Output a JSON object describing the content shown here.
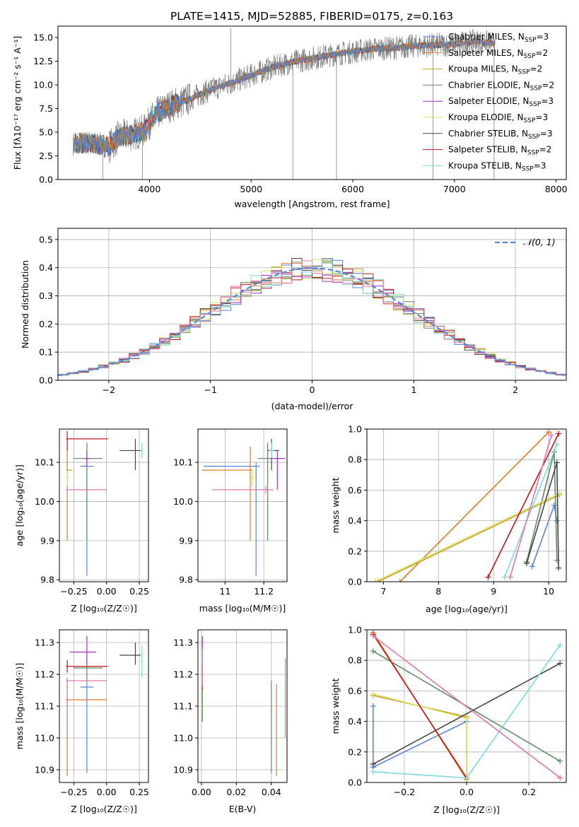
{
  "figure_title": "PLATE=1415, MJD=52885, FIBERID=0175, z=0.163",
  "colors": {
    "chabrier_miles": "#5B84D6",
    "salpeter_miles": "#E07B2A",
    "kroupa_miles": "#C9A227",
    "chabrier_elodie": "#5E8C63",
    "salpeter_elodie": "#9B30C0",
    "kroupa_elodie": "#D8E36A",
    "chabrier_stelib": "#454545",
    "salpeter_stelib": "#C01818",
    "kroupa_stelib": "#7FD8DE",
    "pink": "#E377A8",
    "data_gray": "#808080",
    "normal_curve": "#5B84D6",
    "grid": "#b0b0b0"
  },
  "chart_data": [
    {
      "id": "spectrum",
      "type": "line",
      "xlabel": "wavelength [Angstrom, rest frame]",
      "ylabel": "Flux [f_λ 10^-17 erg cm^-2 s^-1 A^-1]",
      "xlim": [
        3100,
        8100
      ],
      "ylim": [
        0,
        16.2
      ],
      "xticks": [
        4000,
        5000,
        6000,
        7000,
        8000
      ],
      "yticks": [
        0.0,
        2.5,
        5.0,
        7.5,
        10.0,
        12.5,
        15.0
      ],
      "grid": false,
      "legend": "right",
      "legend_entries": [
        {
          "label": "Chabrier MILES, N",
          "sub": "SSP",
          "tail": "=3",
          "color_key": "chabrier_miles"
        },
        {
          "label": "Salpeter MILES, N",
          "sub": "SSP",
          "tail": "=2",
          "color_key": "salpeter_miles"
        },
        {
          "label": "Kroupa MILES, N",
          "sub": "SSP",
          "tail": "=2",
          "color_key": "kroupa_miles"
        },
        {
          "label": "Chabrier ELODIE, N",
          "sub": "SSP",
          "tail": "=2",
          "color_key": "chabrier_elodie"
        },
        {
          "label": "Salpeter ELODIE, N",
          "sub": "SSP",
          "tail": "=3",
          "color_key": "salpeter_elodie"
        },
        {
          "label": "Kroupa ELODIE, N",
          "sub": "SSP",
          "tail": "=3",
          "color_key": "kroupa_elodie"
        },
        {
          "label": "Chabrier STELIB, N",
          "sub": "SSP",
          "tail": "=3",
          "color_key": "chabrier_stelib"
        },
        {
          "label": "Salpeter STELIB, N",
          "sub": "SSP",
          "tail": "=2",
          "color_key": "salpeter_stelib"
        },
        {
          "label": "Kroupa STELIB, N",
          "sub": "SSP",
          "tail": "=3",
          "color_key": "kroupa_stelib"
        }
      ],
      "continuum": {
        "x": [
          3250,
          3400,
          3600,
          3700,
          3850,
          3950,
          4050,
          4200,
          4400,
          4600,
          4800,
          5000,
          5200,
          5400,
          5600,
          5800,
          6000,
          6200,
          6400,
          6600,
          6800,
          7000,
          7200,
          7400
        ],
        "y": [
          3.8,
          3.9,
          3.5,
          4.5,
          4.8,
          5.2,
          6.8,
          7.8,
          8.5,
          9.5,
          10.2,
          11.0,
          11.8,
          12.4,
          12.8,
          13.2,
          13.5,
          13.8,
          13.9,
          14.1,
          14.2,
          14.3,
          14.6,
          14.4
        ]
      },
      "absorption_spikes": [
        {
          "x": 3540,
          "y": 0.0
        },
        {
          "x": 3930,
          "y": 0.0
        },
        {
          "x": 4800,
          "y": 16.0
        },
        {
          "x": 5410,
          "y": 0.0
        },
        {
          "x": 5840,
          "y": 0.0
        },
        {
          "x": 6790,
          "y": 0.0
        },
        {
          "x": 7390,
          "y": 0.0
        }
      ]
    },
    {
      "id": "residuals",
      "type": "histogram",
      "xlabel": "(data-model)/error",
      "ylabel": "Normed distribution",
      "xlim": [
        -2.5,
        2.5
      ],
      "ylim": [
        0,
        0.54
      ],
      "xticks": [
        -2,
        -1,
        0,
        1,
        2
      ],
      "xtick_labels": [
        "−2",
        "−1",
        "0",
        "1",
        "2"
      ],
      "yticks": [
        0.0,
        0.1,
        0.2,
        0.3,
        0.4,
        0.5
      ],
      "grid": true,
      "legend": "top-right",
      "legend_label": "N(0, 1)",
      "bin_width": 0.1,
      "normal_mean": 0,
      "normal_sigma": 1
    },
    {
      "id": "age_vs_Z",
      "type": "errorbar",
      "xlabel": "Z [log10(Z/Z_sun)]",
      "ylabel": "age [log10(age/yr)]",
      "xlim": [
        -0.36,
        0.32
      ],
      "ylim": [
        9.795,
        10.185
      ],
      "xticks": [
        -0.25,
        0.0,
        0.25
      ],
      "xtick_labels": [
        "−0.25",
        "0.00",
        "0.25"
      ],
      "yticks": [
        9.8,
        9.9,
        10.0,
        10.1
      ],
      "grid": true,
      "points": [
        {
          "color_key": "chabrier_miles",
          "x": -0.15,
          "xerr": [
            0.05,
            0.05
          ],
          "y": 10.09,
          "yerr": [
            0.28,
            0.01
          ]
        },
        {
          "color_key": "salpeter_miles",
          "x": -0.3,
          "xerr": [
            0.01,
            0.01
          ],
          "y": 10.08,
          "yerr": [
            0.18,
            0.06
          ]
        },
        {
          "color_key": "kroupa_miles",
          "x": -0.3,
          "xerr": [
            0.01,
            0.04
          ],
          "y": 10.08,
          "yerr": [
            0.01,
            0.01
          ]
        },
        {
          "color_key": "chabrier_elodie",
          "x": -0.15,
          "xerr": [
            0.1,
            0.12
          ],
          "y": 10.11,
          "yerr": [
            0.21,
            0.04
          ]
        },
        {
          "color_key": "salpeter_elodie",
          "x": -0.15,
          "xerr": [
            0.02,
            0.02
          ],
          "y": 10.11,
          "yerr": [
            0.02,
            0.02
          ]
        },
        {
          "color_key": "kroupa_elodie",
          "x": -0.3,
          "xerr": [
            0.01,
            0.01
          ],
          "y": 10.06,
          "yerr": [
            0.02,
            0.02
          ]
        },
        {
          "color_key": "chabrier_stelib",
          "x": 0.22,
          "xerr": [
            0.12,
            0.04
          ],
          "y": 10.13,
          "yerr": [
            0.05,
            0.03
          ]
        },
        {
          "color_key": "salpeter_stelib",
          "x": -0.3,
          "xerr": [
            0.01,
            0.31
          ],
          "y": 10.16,
          "yerr": [
            0.03,
            0.02
          ]
        },
        {
          "color_key": "kroupa_stelib",
          "x": 0.27,
          "xerr": [
            0.01,
            0.01
          ],
          "y": 10.13,
          "yerr": [
            0.02,
            0.02
          ]
        },
        {
          "color_key": "pink",
          "x": -0.3,
          "xerr": [
            0.01,
            0.3
          ],
          "y": 10.03,
          "yerr": [
            0.01,
            0.01
          ]
        }
      ]
    },
    {
      "id": "age_vs_mass",
      "type": "errorbar",
      "xlabel": "mass [log10(M/M_sun)]",
      "xlim": [
        10.86,
        11.32
      ],
      "ylim": [
        9.795,
        10.185
      ],
      "xticks": [
        11.0,
        11.2
      ],
      "yticks": [
        9.8,
        9.9,
        10.0,
        10.1
      ],
      "grid": true,
      "points": [
        {
          "color_key": "chabrier_miles",
          "x": 11.16,
          "xerr": [
            0.27,
            0.02
          ],
          "y": 10.09,
          "yerr": [
            0.28,
            0.01
          ]
        },
        {
          "color_key": "salpeter_miles",
          "x": 11.13,
          "xerr": [
            0.25,
            0.01
          ],
          "y": 10.08,
          "yerr": [
            0.18,
            0.06
          ]
        },
        {
          "color_key": "chabrier_elodie",
          "x": 11.22,
          "xerr": [
            0.05,
            0.03
          ],
          "y": 10.11,
          "yerr": [
            0.21,
            0.04
          ]
        },
        {
          "color_key": "salpeter_elodie",
          "x": 11.27,
          "xerr": [
            0.04,
            0.04
          ],
          "y": 10.11,
          "yerr": [
            0.08,
            0.02
          ]
        },
        {
          "color_key": "kroupa_elodie",
          "x": 11.14,
          "xerr": [
            0.01,
            0.01
          ],
          "y": 10.06,
          "yerr": [
            0.02,
            0.02
          ]
        },
        {
          "color_key": "chabrier_stelib",
          "x": 11.24,
          "xerr": [
            0.02,
            0.04
          ],
          "y": 10.13,
          "yerr": [
            0.05,
            0.03
          ]
        },
        {
          "color_key": "kroupa_stelib",
          "x": 11.24,
          "xerr": [
            0.01,
            0.01
          ],
          "y": 10.13,
          "yerr": [
            0.02,
            0.02
          ]
        },
        {
          "color_key": "pink",
          "x": 11.21,
          "xerr": [
            0.28,
            0.04
          ],
          "y": 10.03,
          "yerr": [
            0.01,
            0.01
          ]
        }
      ]
    },
    {
      "id": "weight_vs_age",
      "type": "line",
      "xlabel": "age [log10(age/yr)]",
      "ylabel": "mass weight",
      "xlim": [
        6.7,
        10.32
      ],
      "ylim": [
        0,
        1.0
      ],
      "xticks": [
        7,
        8,
        9,
        10
      ],
      "yticks": [
        0.0,
        0.2,
        0.4,
        0.6,
        0.8,
        1.0
      ],
      "grid": true,
      "series": [
        {
          "color_key": "chabrier_miles",
          "x": [
            9.7,
            10.1,
            10.15
          ],
          "y": [
            0.1,
            0.5,
            0.4
          ]
        },
        {
          "color_key": "salpeter_miles",
          "x": [
            7.3,
            10.0
          ],
          "y": [
            0.0,
            0.98
          ]
        },
        {
          "color_key": "kroupa_miles",
          "x": [
            6.9,
            10.2
          ],
          "y": [
            0.0,
            0.57
          ]
        },
        {
          "color_key": "chabrier_elodie",
          "x": [
            9.6,
            10.1,
            10.15
          ],
          "y": [
            0.13,
            0.85,
            0.14
          ]
        },
        {
          "color_key": "kroupa_elodie",
          "x": [
            6.85,
            10.2
          ],
          "y": [
            0.0,
            0.58
          ]
        },
        {
          "color_key": "chabrier_stelib",
          "x": [
            9.6,
            10.15,
            10.18
          ],
          "y": [
            0.12,
            0.78,
            0.09
          ]
        },
        {
          "color_key": "salpeter_stelib",
          "x": [
            8.9,
            10.18
          ],
          "y": [
            0.03,
            0.97
          ]
        },
        {
          "color_key": "kroupa_stelib",
          "x": [
            9.2,
            10.15
          ],
          "y": [
            0.03,
            0.9
          ]
        },
        {
          "color_key": "pink",
          "x": [
            9.3,
            10.05
          ],
          "y": [
            0.03,
            0.96
          ]
        }
      ]
    },
    {
      "id": "mass_vs_Z",
      "type": "errorbar",
      "xlabel": "Z [log10(Z/Z_sun)]",
      "ylabel": "mass [log10(M/M_sun)]",
      "xlim": [
        -0.36,
        0.32
      ],
      "ylim": [
        10.86,
        11.34
      ],
      "xticks": [
        -0.25,
        0.0,
        0.25
      ],
      "xtick_labels": [
        "−0.25",
        "0.00",
        "0.25"
      ],
      "yticks": [
        10.9,
        11.0,
        11.1,
        11.2,
        11.3
      ],
      "grid": true,
      "points": [
        {
          "color_key": "chabrier_miles",
          "x": -0.15,
          "xerr": [
            0.05,
            0.05
          ],
          "y": 11.16,
          "yerr": [
            0.27,
            0.02
          ]
        },
        {
          "color_key": "salpeter_miles",
          "x": -0.3,
          "xerr": [
            0.01,
            0.3
          ],
          "y": 11.12,
          "yerr": [
            0.24,
            0.01
          ]
        },
        {
          "color_key": "chabrier_elodie",
          "x": -0.15,
          "xerr": [
            0.1,
            0.12
          ],
          "y": 11.22,
          "yerr": [
            0.04,
            0.03
          ]
        },
        {
          "color_key": "salpeter_elodie",
          "x": -0.15,
          "xerr": [
            0.13,
            0.07
          ],
          "y": 11.27,
          "yerr": [
            0.04,
            0.05
          ]
        },
        {
          "color_key": "kroupa_elodie",
          "x": -0.3,
          "xerr": [
            0.01,
            0.01
          ],
          "y": 11.16,
          "yerr": [
            0.02,
            0.02
          ]
        },
        {
          "color_key": "chabrier_stelib",
          "x": 0.22,
          "xerr": [
            0.12,
            0.04
          ],
          "y": 11.26,
          "yerr": [
            0.03,
            0.04
          ]
        },
        {
          "color_key": "salpeter_stelib",
          "x": -0.3,
          "xerr": [
            0.01,
            0.31
          ],
          "y": 11.225,
          "yerr": [
            0.02,
            0.02
          ]
        },
        {
          "color_key": "kroupa_stelib",
          "x": 0.27,
          "xerr": [
            0.01,
            0.01
          ],
          "y": 11.24,
          "yerr": [
            0.05,
            0.05
          ]
        },
        {
          "color_key": "pink",
          "x": -0.3,
          "xerr": [
            0.01,
            0.3
          ],
          "y": 11.18,
          "yerr": [
            0.18,
            0.01
          ]
        }
      ]
    },
    {
      "id": "mass_vs_ebv",
      "type": "errorbar",
      "xlabel": "E(B-V)",
      "xlim": [
        -0.002,
        0.049
      ],
      "ylim": [
        10.86,
        11.34
      ],
      "xticks": [
        0.0,
        0.02,
        0.04
      ],
      "xtick_labels": [
        "0.00",
        "0.02",
        "0.04"
      ],
      "yticks": [
        10.9,
        11.0,
        11.1,
        11.2,
        11.3
      ],
      "grid": true,
      "points": [
        {
          "color_key": "chabrier_miles",
          "x": 0.04,
          "xerr": [
            0,
            0
          ],
          "y": 11.16,
          "yerr": [
            0.27,
            0.02
          ]
        },
        {
          "color_key": "salpeter_miles",
          "x": 0.043,
          "xerr": [
            0,
            0
          ],
          "y": 11.12,
          "yerr": [
            0.24,
            0.05
          ]
        },
        {
          "color_key": "pink",
          "x": 0.048,
          "xerr": [
            0,
            0
          ],
          "y": 11.2,
          "yerr": [
            0.2,
            0.05
          ]
        },
        {
          "color_key": "salpeter_elodie",
          "x": 0.0005,
          "xerr": [
            0,
            0
          ],
          "y": 11.27,
          "yerr": [
            0.04,
            0.05
          ]
        },
        {
          "color_key": "salpeter_stelib",
          "x": 0.0005,
          "xerr": [
            0,
            0
          ],
          "y": 11.2,
          "yerr": [
            0.05,
            0.03
          ]
        },
        {
          "color_key": "kroupa_elodie",
          "x": 0.0005,
          "xerr": [
            0,
            0
          ],
          "y": 11.1,
          "yerr": [
            0.05,
            0.05
          ]
        },
        {
          "color_key": "chabrier_elodie",
          "x": 0.0005,
          "xerr": [
            0,
            0
          ],
          "y": 11.1,
          "yerr": [
            0.05,
            0.05
          ]
        },
        {
          "color_key": "kroupa_stelib",
          "x": 0.0003,
          "xerr": [
            0,
            0
          ],
          "y": 11.22,
          "yerr": [
            0.06,
            0.06
          ]
        }
      ]
    },
    {
      "id": "weight_vs_Z",
      "type": "line",
      "xlabel": "Z [log10(Z/Z_sun)]",
      "ylabel": "mass weight",
      "xlim": [
        -0.32,
        0.32
      ],
      "ylim": [
        0,
        1.0
      ],
      "xticks": [
        -0.2,
        0.0,
        0.2
      ],
      "xtick_labels": [
        "−0.2",
        "0.0",
        "0.2"
      ],
      "yticks": [
        0.0,
        0.2,
        0.4,
        0.6,
        0.8,
        1.0
      ],
      "grid": true,
      "series": [
        {
          "color_key": "chabrier_miles",
          "x": [
            -0.3,
            -0.3,
            -0.3,
            0.0
          ],
          "y": [
            0.1,
            0.5,
            0.1,
            0.4
          ]
        },
        {
          "color_key": "salpeter_miles",
          "x": [
            -0.3,
            0.0
          ],
          "y": [
            0.98,
            0.02
          ]
        },
        {
          "color_key": "kroupa_miles",
          "x": [
            -0.3,
            0.0,
            0.0
          ],
          "y": [
            0.57,
            0.43,
            0.0
          ]
        },
        {
          "color_key": "chabrier_elodie",
          "x": [
            -0.3,
            0.3
          ],
          "y": [
            0.86,
            0.14
          ]
        },
        {
          "color_key": "kroupa_elodie",
          "x": [
            -0.3,
            0.0,
            0.0
          ],
          "y": [
            0.58,
            0.42,
            0.0
          ]
        },
        {
          "color_key": "chabrier_stelib",
          "x": [
            -0.3,
            0.3
          ],
          "y": [
            0.12,
            0.78
          ]
        },
        {
          "color_key": "salpeter_stelib",
          "x": [
            -0.3,
            0.0
          ],
          "y": [
            0.97,
            0.03
          ]
        },
        {
          "color_key": "kroupa_stelib",
          "x": [
            -0.3,
            0.0,
            0.3
          ],
          "y": [
            0.07,
            0.03,
            0.9
          ]
        },
        {
          "color_key": "pink",
          "x": [
            -0.3,
            0.3
          ],
          "y": [
            0.96,
            0.03
          ]
        }
      ]
    }
  ]
}
